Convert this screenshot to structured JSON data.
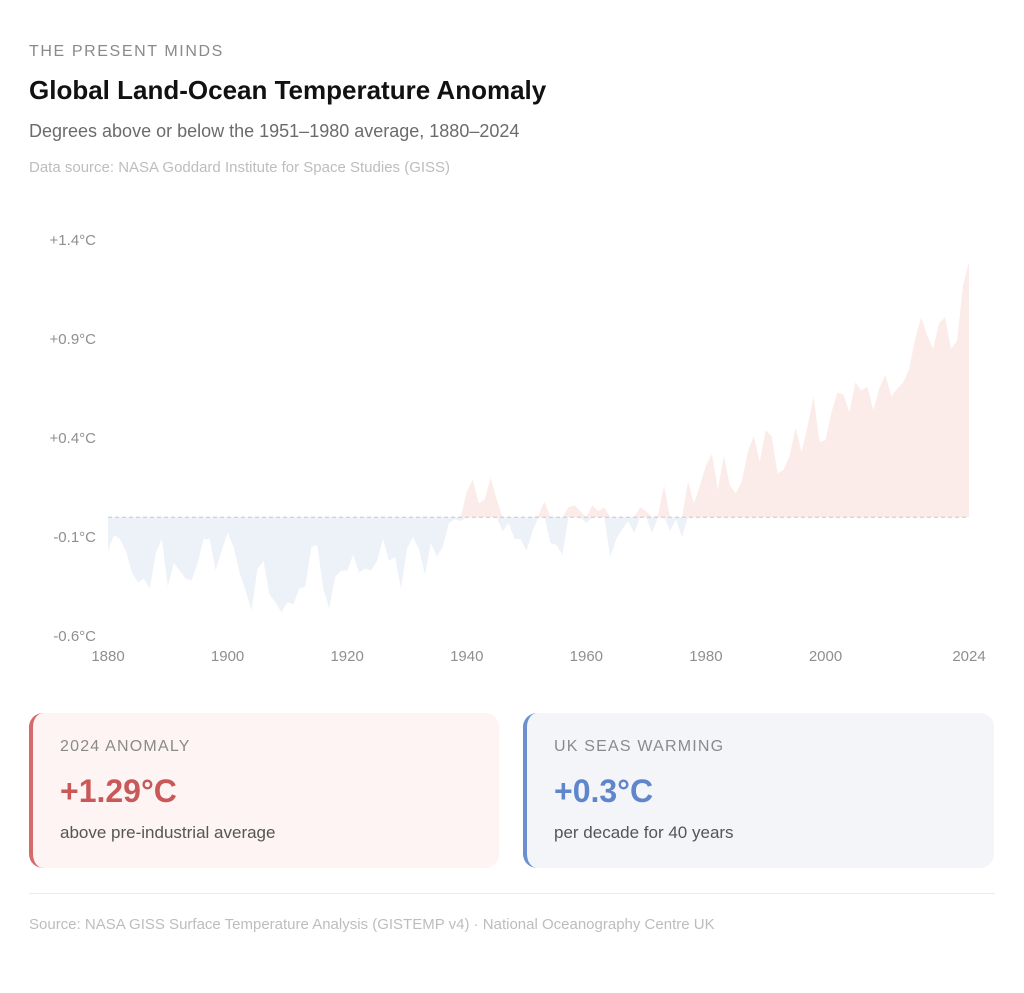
{
  "header": {
    "brand": "THE PRESENT MINDS",
    "title": "Global Land-Ocean Temperature Anomaly",
    "subtitle": "Degrees above or below the 1951–1980 average, 1880–2024",
    "data_source": "Data source: NASA Goddard Institute for Space Studies (GISS)"
  },
  "colors": {
    "warm_fill": "#fbece9",
    "cool_fill": "#edf1f8",
    "warm_accent": "#d46a6a",
    "cool_accent": "#6b8fcf",
    "baseline": "#c8c8c8"
  },
  "chart_data": {
    "type": "area",
    "title": "",
    "xlabel": "",
    "ylabel": "",
    "xlim": [
      1880,
      2024
    ],
    "ylim": [
      -0.6,
      1.4
    ],
    "baseline": 0,
    "grid": false,
    "y_ticks": [
      "+1.4°C",
      "+0.9°C",
      "+0.4°C",
      "-0.1°C",
      "-0.6°C"
    ],
    "y_tick_values": [
      1.4,
      0.9,
      0.4,
      -0.1,
      -0.6
    ],
    "x_ticks": [
      "1880",
      "1900",
      "1920",
      "1940",
      "1960",
      "1980",
      "2000",
      "2024"
    ],
    "x_tick_values": [
      1880,
      1900,
      1920,
      1940,
      1960,
      1980,
      2000,
      2024
    ],
    "series": [
      {
        "x": [
          1880,
          1881,
          1882,
          1883,
          1884,
          1885,
          1886,
          1887,
          1888,
          1889,
          1890,
          1891,
          1892,
          1893,
          1894,
          1895,
          1896,
          1897,
          1898,
          1899,
          1900,
          1901,
          1902,
          1903,
          1904,
          1905,
          1906,
          1907,
          1908,
          1909,
          1910,
          1911,
          1912,
          1913,
          1914,
          1915,
          1916,
          1917,
          1918,
          1919,
          1920,
          1921,
          1922,
          1923,
          1924,
          1925,
          1926,
          1927,
          1928,
          1929,
          1930,
          1931,
          1932,
          1933,
          1934,
          1935,
          1936,
          1937,
          1938,
          1939,
          1940,
          1941,
          1942,
          1943,
          1944,
          1945,
          1946,
          1947,
          1948,
          1949,
          1950,
          1951,
          1952,
          1953,
          1954,
          1955,
          1956,
          1957,
          1958,
          1959,
          1960,
          1961,
          1962,
          1963,
          1964,
          1965,
          1966,
          1967,
          1968,
          1969,
          1970,
          1971,
          1972,
          1973,
          1974,
          1975,
          1976,
          1977,
          1978,
          1979,
          1980,
          1981,
          1982,
          1983,
          1984,
          1985,
          1986,
          1987,
          1988,
          1989,
          1990,
          1991,
          1992,
          1993,
          1994,
          1995,
          1996,
          1997,
          1998,
          1999,
          2000,
          2001,
          2002,
          2003,
          2004,
          2005,
          2006,
          2007,
          2008,
          2009,
          2010,
          2011,
          2012,
          2013,
          2014,
          2015,
          2016,
          2017,
          2018,
          2019,
          2020,
          2021,
          2022,
          2023,
          2024
        ],
        "y": [
          -0.17,
          -0.09,
          -0.11,
          -0.17,
          -0.28,
          -0.33,
          -0.31,
          -0.36,
          -0.18,
          -0.11,
          -0.35,
          -0.23,
          -0.27,
          -0.31,
          -0.32,
          -0.23,
          -0.11,
          -0.11,
          -0.27,
          -0.17,
          -0.08,
          -0.15,
          -0.28,
          -0.37,
          -0.47,
          -0.26,
          -0.22,
          -0.39,
          -0.43,
          -0.48,
          -0.43,
          -0.44,
          -0.36,
          -0.35,
          -0.15,
          -0.14,
          -0.36,
          -0.46,
          -0.3,
          -0.27,
          -0.27,
          -0.19,
          -0.28,
          -0.26,
          -0.27,
          -0.22,
          -0.11,
          -0.22,
          -0.2,
          -0.36,
          -0.16,
          -0.1,
          -0.16,
          -0.29,
          -0.13,
          -0.2,
          -0.15,
          -0.03,
          -0.01,
          -0.02,
          0.13,
          0.19,
          0.07,
          0.09,
          0.2,
          0.09,
          -0.07,
          -0.03,
          -0.11,
          -0.11,
          -0.17,
          -0.07,
          0.01,
          0.08,
          -0.13,
          -0.14,
          -0.19,
          0.05,
          0.06,
          0.03,
          -0.03,
          0.06,
          0.03,
          0.05,
          -0.2,
          -0.11,
          -0.06,
          -0.02,
          -0.08,
          0.05,
          0.03,
          -0.08,
          0.01,
          0.16,
          -0.07,
          -0.01,
          -0.1,
          0.18,
          0.07,
          0.16,
          0.26,
          0.32,
          0.14,
          0.31,
          0.16,
          0.12,
          0.18,
          0.33,
          0.41,
          0.28,
          0.44,
          0.41,
          0.22,
          0.24,
          0.31,
          0.45,
          0.33,
          0.46,
          0.61,
          0.38,
          0.39,
          0.53,
          0.63,
          0.62,
          0.53,
          0.68,
          0.64,
          0.66,
          0.54,
          0.65,
          0.72,
          0.61,
          0.65,
          0.68,
          0.75,
          0.9,
          1.01,
          0.92,
          0.85,
          0.98,
          1.01,
          0.85,
          0.89,
          1.17,
          1.29
        ]
      }
    ]
  },
  "cards": [
    {
      "label": "2024 ANOMALY",
      "value": "+1.29°C",
      "desc": "above pre-industrial average"
    },
    {
      "label": "UK SEAS WARMING",
      "value": "+0.3°C",
      "desc": "per decade for 40 years"
    }
  ],
  "footer": "Source: NASA GISS Surface Temperature Analysis (GISTEMP v4) · National Oceanography Centre UK"
}
